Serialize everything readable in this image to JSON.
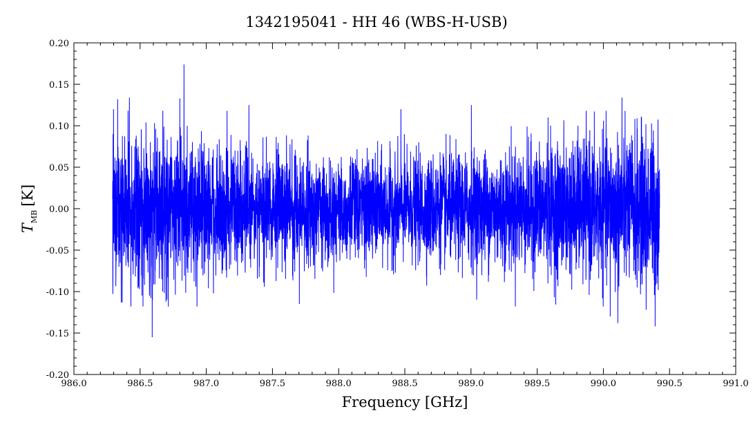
{
  "chart_data": {
    "type": "line",
    "title": "1342195041 - HH 46 (WBS-H-USB)",
    "xlabel": "Frequency [GHz]",
    "ylabel_symbol": "T",
    "ylabel_subscript": "MB",
    "ylabel_unit": "[K]",
    "xlim": [
      986.0,
      991.0
    ],
    "ylim": [
      -0.2,
      0.2
    ],
    "xticks": [
      "986.0",
      "986.5",
      "987.0",
      "987.5",
      "988.0",
      "988.5",
      "989.0",
      "989.5",
      "990.0",
      "990.5",
      "991.0"
    ],
    "yticks": [
      "-0.20",
      "-0.15",
      "-0.10",
      "-0.05",
      "0.00",
      "0.05",
      "0.10",
      "0.15",
      "0.20"
    ],
    "grid": false,
    "series": [
      {
        "color": "#0000ff",
        "x_range": [
          986.29,
          990.42
        ],
        "edge_rms": 0.048,
        "center_rms": 0.03,
        "x": [
          986.3,
          986.33,
          986.42,
          986.57,
          986.59,
          986.8,
          986.83,
          987.32,
          987.7,
          988.47,
          989.0,
          989.58,
          990.05,
          990.11,
          990.14,
          990.32,
          990.39
        ],
        "y": [
          0.12,
          0.132,
          0.134,
          -0.105,
          -0.155,
          0.133,
          0.174,
          0.125,
          -0.115,
          0.12,
          0.125,
          0.11,
          -0.13,
          -0.138,
          0.134,
          -0.122,
          -0.142
        ]
      }
    ]
  }
}
